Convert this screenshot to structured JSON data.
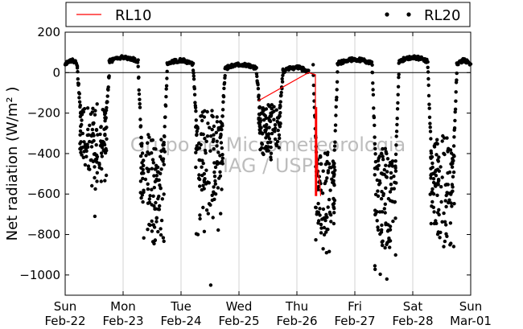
{
  "chart_data": {
    "type": "scatter",
    "ylabel": "Net radiation (W/m² )",
    "ylim": [
      -1100,
      200
    ],
    "yticks": [
      200,
      0,
      -200,
      -400,
      -600,
      -800,
      -1000
    ],
    "ytick_labels": [
      "200",
      "0",
      "−200",
      "−400",
      "−600",
      "−800",
      "−1000"
    ],
    "xlim": [
      0,
      7
    ],
    "xticks": [
      {
        "pos": 0,
        "day": "Sun",
        "date": "Feb-22"
      },
      {
        "pos": 1,
        "day": "Mon",
        "date": "Feb-23"
      },
      {
        "pos": 2,
        "day": "Tue",
        "date": "Feb-24"
      },
      {
        "pos": 3,
        "day": "Wed",
        "date": "Feb-25"
      },
      {
        "pos": 4,
        "day": "Thu",
        "date": "Feb-26"
      },
      {
        "pos": 5,
        "day": "Fri",
        "date": "Feb-27"
      },
      {
        "pos": 6,
        "day": "Sat",
        "date": "Feb-28"
      },
      {
        "pos": 7,
        "day": "Sun",
        "date": "Mar-01"
      }
    ],
    "grid": "vertical",
    "zero_line": true,
    "legend": "top",
    "watermark": [
      "Grupo de Micrometeorologia",
      "IAG / USP"
    ],
    "series": [
      {
        "name": "RL10",
        "style": "line",
        "color": "#ff0000",
        "x": [
          3.33,
          4.2,
          4.32,
          4.32,
          4.36,
          4.38,
          4.4,
          4.41
        ],
        "y": [
          -140,
          0,
          -10,
          -170,
          -480,
          -520,
          -560,
          -610
        ]
      },
      {
        "name": "RL20",
        "style": "markers",
        "color": "#000000",
        "nights": [
          {
            "start": 0.21,
            "end": 0.76,
            "base": -260,
            "spread": 170,
            "minimum": -710
          },
          {
            "start": 1.26,
            "end": 1.76,
            "base": -430,
            "spread": 230,
            "minimum": -845
          },
          {
            "start": 2.21,
            "end": 2.76,
            "base": -320,
            "spread": 220,
            "minimum": -1050
          },
          {
            "start": 3.3,
            "end": 3.76,
            "base": -230,
            "spread": 110,
            "minimum": -430
          },
          {
            "start": 4.28,
            "end": 4.7,
            "base": -520,
            "spread": 200,
            "minimum": -890
          },
          {
            "start": 5.3,
            "end": 5.76,
            "base": -520,
            "spread": 230,
            "minimum": -1020
          },
          {
            "start": 6.26,
            "end": 6.76,
            "base": -470,
            "spread": 240,
            "minimum": -860
          }
        ],
        "day_plateau": [
          {
            "start": 0.0,
            "end": 0.21,
            "level": 40
          },
          {
            "start": 0.76,
            "end": 1.26,
            "level": 55
          },
          {
            "start": 1.76,
            "end": 2.21,
            "level": 40
          },
          {
            "start": 2.76,
            "end": 3.3,
            "level": 20
          },
          {
            "start": 3.76,
            "end": 4.2,
            "level": 5
          },
          {
            "start": 4.7,
            "end": 5.3,
            "level": 45
          },
          {
            "start": 5.76,
            "end": 6.26,
            "level": 55
          },
          {
            "start": 6.76,
            "end": 7.0,
            "level": 40
          }
        ],
        "peak": 90
      }
    ]
  }
}
